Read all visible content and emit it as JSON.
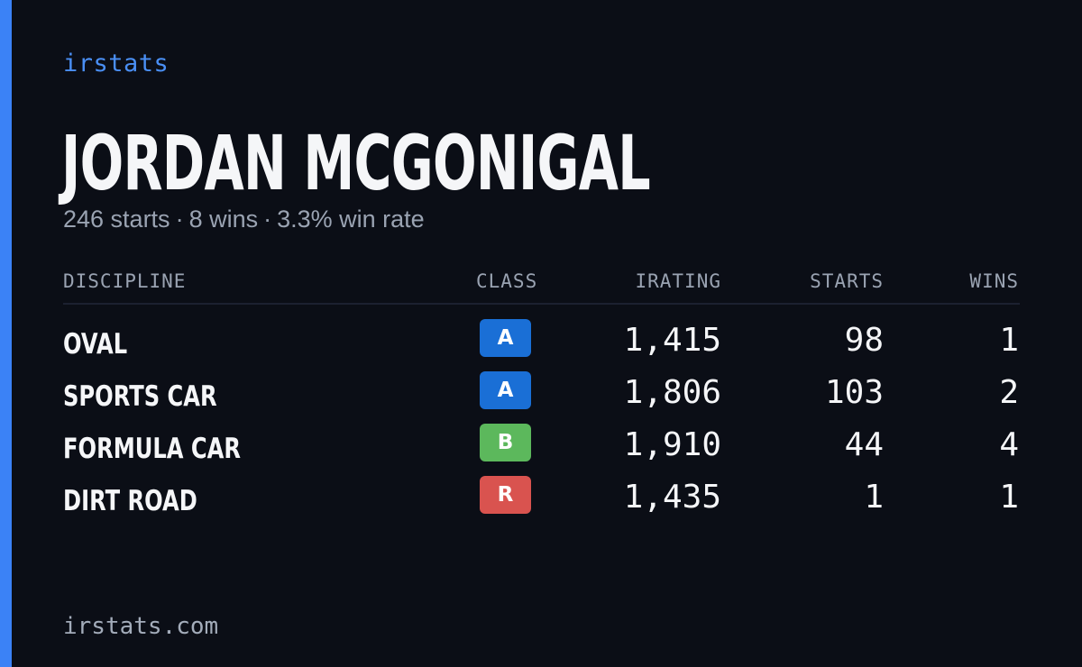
{
  "brand": "irstats",
  "player": {
    "name": "JORDAN MCGONIGAL",
    "starts_text": "246 starts",
    "wins_text": "8 wins",
    "win_rate_text": "3.3% win rate",
    "separator": "·"
  },
  "table": {
    "headers": {
      "discipline": "DISCIPLINE",
      "class": "CLASS",
      "irating": "IRATING",
      "starts": "STARTS",
      "wins": "WINS"
    },
    "rows": [
      {
        "discipline": "OVAL",
        "class": "A",
        "class_color": "#1a6fd6",
        "irating": "1,415",
        "starts": "98",
        "wins": "1"
      },
      {
        "discipline": "SPORTS CAR",
        "class": "A",
        "class_color": "#1a6fd6",
        "irating": "1,806",
        "starts": "103",
        "wins": "2"
      },
      {
        "discipline": "FORMULA CAR",
        "class": "B",
        "class_color": "#5cb85c",
        "irating": "1,910",
        "starts": "44",
        "wins": "4"
      },
      {
        "discipline": "DIRT ROAD",
        "class": "R",
        "class_color": "#d9534f",
        "irating": "1,435",
        "starts": "1",
        "wins": "1"
      }
    ]
  },
  "footer": "irstats.com",
  "colors": {
    "background": "#0b0e16",
    "accent": "#3b82f6",
    "brand_text": "#4a8ff5",
    "muted_text": "#9aa3b2"
  }
}
